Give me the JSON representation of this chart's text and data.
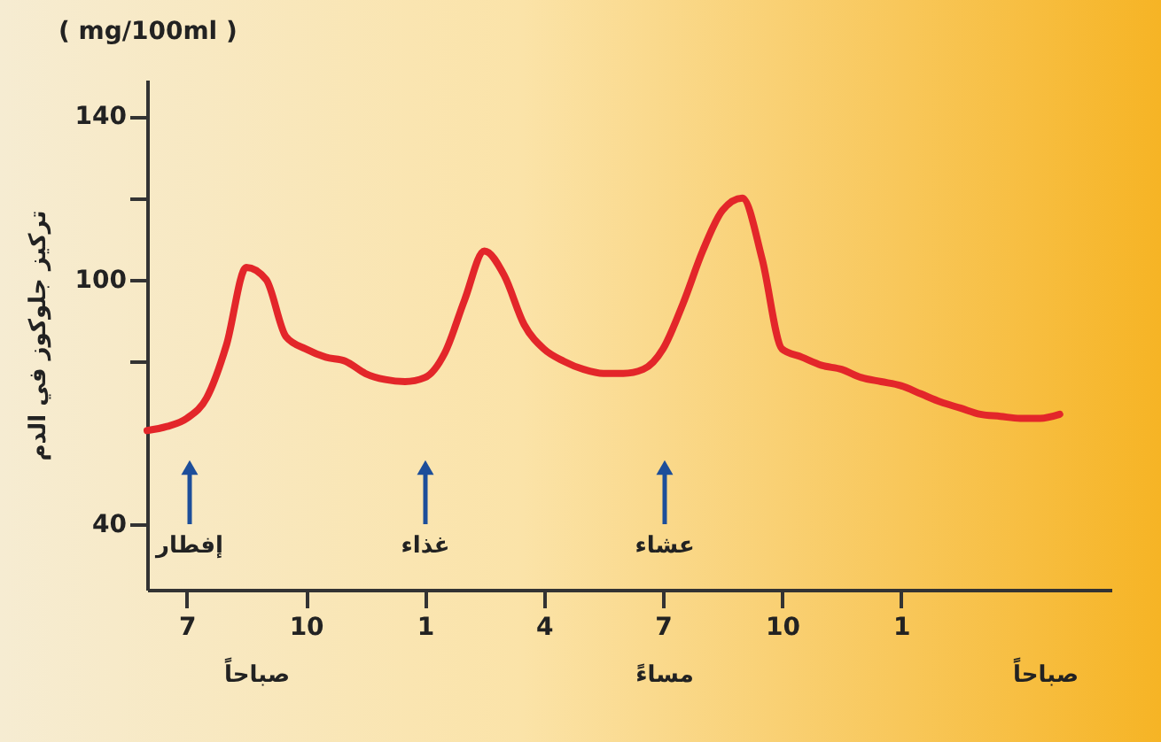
{
  "chart_data": {
    "type": "line",
    "title": "( mg/100ml )",
    "ylabel": "تركيز جلوكوز في الدم",
    "categories": [
      null,
      null,
      "7",
      null,
      null,
      null,
      null,
      null,
      "10",
      null,
      null,
      null,
      null,
      null,
      "1",
      null,
      null,
      null,
      null,
      null,
      "4",
      null,
      null,
      null,
      null,
      null,
      "7",
      null,
      null,
      null,
      null,
      null,
      "10",
      null,
      null,
      null,
      null,
      null,
      "1",
      null,
      null,
      null,
      null,
      null,
      null,
      null,
      null,
      null,
      null
    ],
    "series": [
      {
        "color": "#e3262a",
        "values": [
          63,
          64,
          66,
          71,
          84,
          103,
          100,
          86,
          83,
          81,
          80,
          77,
          75.5,
          75,
          76,
          82,
          95,
          107,
          101,
          89,
          83,
          80,
          78,
          77,
          77,
          78,
          83,
          94,
          107,
          117,
          120,
          105,
          83,
          81,
          79,
          78,
          76,
          75,
          74,
          72,
          70,
          68.5,
          67,
          66.5,
          66,
          66,
          67,
          null,
          null
        ]
      }
    ],
    "ylim": [
      24,
      149
    ],
    "yticks": [
      40,
      {
        "value": 80,
        "label": null
      },
      100,
      {
        "value": 120,
        "label": null
      },
      140
    ],
    "annotations": [
      "إفطار",
      "غذاء",
      "عشاء",
      "صباحاً",
      "مساءً",
      "صباحاً"
    ],
    "grid": false,
    "marker": "none",
    "line_style": "solid"
  }
}
